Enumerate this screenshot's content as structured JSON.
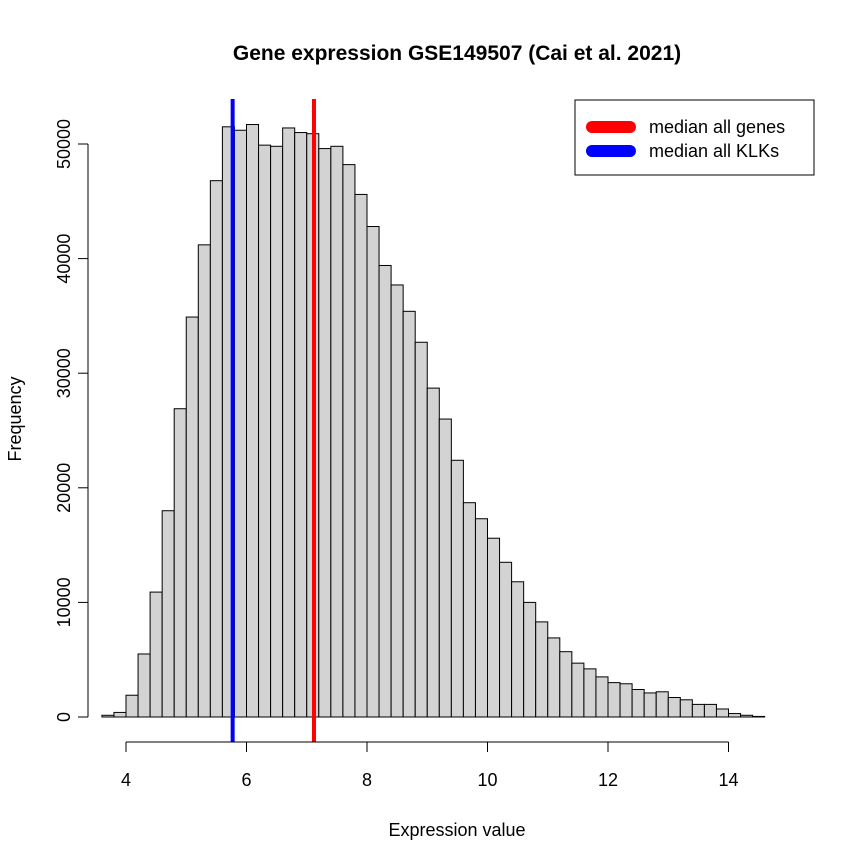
{
  "chart_data": {
    "type": "bar",
    "title": "Gene expression GSE149507 (Cai et al. 2021)",
    "xlabel": "Expression value",
    "ylabel": "Frequency",
    "bin_width": 0.2,
    "x_start": 3.6,
    "xlim": [
      3.6,
      14.6
    ],
    "ylim": [
      0,
      53000
    ],
    "x_ticks": [
      4,
      6,
      8,
      10,
      12,
      14
    ],
    "y_ticks": [
      0,
      10000,
      20000,
      30000,
      40000,
      50000
    ],
    "bar_fill": "#d3d3d3",
    "bar_stroke": "#000000",
    "values": [
      150,
      400,
      1900,
      5500,
      10900,
      18000,
      26900,
      34900,
      41200,
      46800,
      51500,
      51200,
      51700,
      49900,
      49800,
      51400,
      51000,
      50900,
      49600,
      49800,
      48200,
      45600,
      42800,
      39400,
      37700,
      35400,
      32700,
      28700,
      26000,
      22400,
      18700,
      17300,
      15600,
      13500,
      11800,
      10000,
      8300,
      6900,
      5700,
      4700,
      4200,
      3500,
      3000,
      2900,
      2400,
      2100,
      2200,
      1700,
      1500,
      1100,
      1100,
      700,
      300,
      150,
      50
    ],
    "vlines": [
      {
        "name": "median all genes",
        "x": 7.12,
        "color": "#ff0000"
      },
      {
        "name": "median all KLKs",
        "x": 5.77,
        "color": "#0000ff"
      }
    ],
    "legend": {
      "position": "top-right",
      "entries": [
        {
          "label": "median all genes",
          "color": "#ff0000"
        },
        {
          "label": "median all KLKs",
          "color": "#0000ff"
        }
      ]
    },
    "grid": false
  }
}
